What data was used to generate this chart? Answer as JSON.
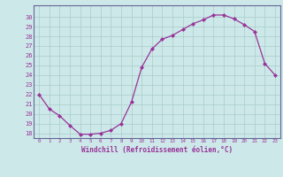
{
  "x": [
    0,
    1,
    2,
    3,
    4,
    5,
    6,
    7,
    8,
    9,
    10,
    11,
    12,
    13,
    14,
    15,
    16,
    17,
    18,
    19,
    20,
    21,
    22,
    23
  ],
  "y": [
    22.0,
    20.5,
    19.8,
    18.8,
    17.9,
    17.9,
    18.0,
    18.3,
    19.0,
    21.2,
    24.8,
    26.7,
    27.7,
    28.1,
    28.7,
    29.3,
    29.7,
    30.2,
    30.2,
    29.8,
    29.2,
    28.5,
    25.2,
    24.0
  ],
  "xlim": [
    -0.5,
    23.5
  ],
  "ylim": [
    17.5,
    31.2
  ],
  "yticks": [
    18,
    19,
    20,
    21,
    22,
    23,
    24,
    25,
    26,
    27,
    28,
    29,
    30
  ],
  "xtick_labels": [
    "0",
    "1",
    "2",
    "3",
    "4",
    "5",
    "6",
    "7",
    "8",
    "9",
    "10",
    "11",
    "12",
    "13",
    "14",
    "15",
    "16",
    "17",
    "18",
    "19",
    "20",
    "21",
    "22",
    "23"
  ],
  "xlabel": "Windchill (Refroidissement éolien,°C)",
  "line_color": "#993399",
  "marker_color": "#993399",
  "bg_color": "#cce8e8",
  "grid_color": "#aacccc",
  "axis_color": "#666699",
  "tick_color": "#993399"
}
